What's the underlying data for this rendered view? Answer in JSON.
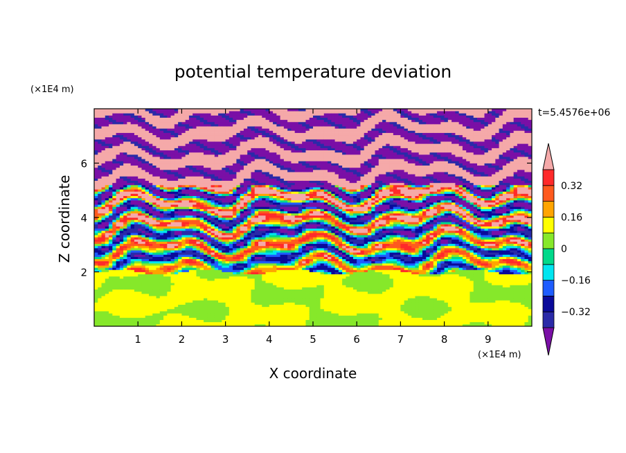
{
  "chart_data": {
    "type": "heatmap",
    "title": "potential temperature deviation",
    "xlabel": "X coordinate",
    "ylabel": "Z coordinate",
    "x_unit_label": "(×1E4 m)",
    "y_unit_label": "(×1E4 m)",
    "time_label": "t=5.4576e+06",
    "xlim": [
      0,
      10
    ],
    "ylim": [
      0,
      8
    ],
    "x_ticks": [
      1,
      2,
      3,
      4,
      5,
      6,
      7,
      8,
      9
    ],
    "y_ticks": [
      2,
      4,
      6
    ],
    "x_tick_labels": [
      "1",
      "2",
      "3",
      "4",
      "5",
      "6",
      "7",
      "8",
      "9"
    ],
    "y_tick_labels": [
      "2",
      "4",
      "6"
    ],
    "colorbar": {
      "levels": [
        -0.4,
        -0.32,
        -0.24,
        -0.16,
        -0.08,
        0,
        0.08,
        0.16,
        0.24,
        0.32,
        0.4
      ],
      "colors": [
        "#7a0fa6",
        "#2a2aa8",
        "#0a0a9a",
        "#1e5cff",
        "#00e5f0",
        "#00d98a",
        "#86e82a",
        "#ffff00",
        "#ffa400",
        "#ff5a1e",
        "#ff2a2a",
        "#f5a9a9"
      ],
      "tick_values": [
        0.32,
        0.16,
        0,
        -0.16,
        -0.32
      ],
      "tick_labels": [
        "0.32",
        "0.16",
        "0",
        "−0.16",
        "−0.32"
      ]
    },
    "field_description": {
      "lower_layer_z_range": [
        0,
        2
      ],
      "lower_layer_values": [
        0,
        0.08
      ],
      "upper_layer_z_range": [
        2,
        8
      ],
      "upper_layer_values": [
        -0.4,
        0.4
      ]
    }
  }
}
